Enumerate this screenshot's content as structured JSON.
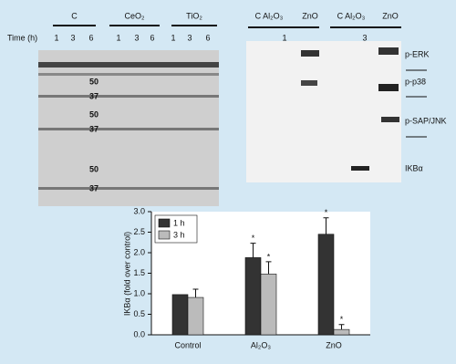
{
  "blots": {
    "left": {
      "groups": [
        "C",
        "CeO₂",
        "TiO₂"
      ],
      "time_label": "Time (h)",
      "times": [
        "1",
        "3",
        "6",
        "1",
        "3",
        "6",
        "1",
        "3",
        "6"
      ],
      "markers": [
        "50",
        "37",
        "50",
        "37",
        "50",
        "37"
      ]
    },
    "right": {
      "groups": [
        "C Al₂O₃",
        "ZnO",
        "C Al₂O₃",
        "ZnO"
      ],
      "times": [
        "1",
        "3"
      ],
      "labels": [
        "p-ERK",
        "p-p38",
        "p-SAP/JNK",
        "IKBα"
      ]
    }
  },
  "chart_data": {
    "type": "bar",
    "y_label": "IKBα (fold over control)",
    "categories": [
      "Control",
      "Al₂O₃",
      "ZnO"
    ],
    "series": [
      {
        "name": "1 h",
        "color": "#333333",
        "values": [
          0.98,
          1.88,
          2.45
        ],
        "errors": [
          0,
          0.35,
          0.4
        ]
      },
      {
        "name": "3 h",
        "color": "#bbbbbb",
        "values": [
          0.91,
          1.48,
          0.13
        ],
        "errors": [
          0.2,
          0.3,
          0.12
        ]
      }
    ],
    "annotations": [
      "*",
      "*",
      "*",
      "*"
    ],
    "ylim": [
      0,
      3
    ],
    "yticks": [
      {
        "value": 0,
        "label": "0.0"
      },
      {
        "value": 0.5,
        "label": "0.5"
      },
      {
        "value": 1,
        "label": "1.0"
      },
      {
        "value": 1.5,
        "label": "1.5"
      },
      {
        "value": 2,
        "label": "2.0"
      },
      {
        "value": 2.5,
        "label": "2.5"
      },
      {
        "value": 3,
        "label": "3.0"
      }
    ],
    "legend": "upper left"
  }
}
